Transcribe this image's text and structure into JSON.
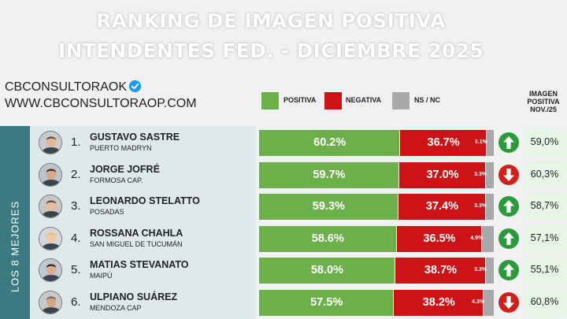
{
  "header": {
    "title_line1": "RANKING DE IMAGEN POSITIVA",
    "title_line2": "INTENDENTES FED. - DICIEMBRE 2025"
  },
  "brand": {
    "handle": "CBCONSULTORAOK",
    "website": "WWW.CBCONSULTORAOP.COM"
  },
  "legend": {
    "positive": "POSITIVA",
    "negative": "NEGATIVA",
    "nsnc": "NS / NC"
  },
  "prev_header": {
    "line1": "IMAGEN",
    "line2": "POSITIVA",
    "line3": "NOV./25"
  },
  "side_label": "LOS 8 MEJORES",
  "colors": {
    "positive": "#6db04b",
    "negative": "#cc1418",
    "nsnc": "#a9a9a9",
    "trend_up": "#2a9a3a",
    "trend_down": "#d0201c"
  },
  "chart_data": {
    "type": "bar",
    "stacked": true,
    "orientation": "horizontal",
    "title": "RANKING DE IMAGEN POSITIVA INTENDENTES FED. - DICIEMBRE 2025",
    "legend": [
      "POSITIVA",
      "NEGATIVA",
      "NS / NC"
    ],
    "xlim": [
      0,
      100
    ],
    "rows": [
      {
        "rank": "1.",
        "name": "GUSTAVO SASTRE",
        "city": "PUERTO MADRYN",
        "positive": 60.2,
        "negative": 36.7,
        "nsnc": 3.1,
        "positive_label": "60.2%",
        "negative_label": "36.7%",
        "nsnc_label": "3.1%",
        "trend": "up",
        "prev_label": "59,0%"
      },
      {
        "rank": "2.",
        "name": "JORGE JOFRÉ",
        "city": "FORMOSA CAP.",
        "positive": 59.7,
        "negative": 37.0,
        "nsnc": 3.3,
        "positive_label": "59.7%",
        "negative_label": "37.0%",
        "nsnc_label": "3.3%",
        "trend": "down",
        "prev_label": "60,3%"
      },
      {
        "rank": "3.",
        "name": "LEONARDO STELATTO",
        "city": "POSADAS",
        "positive": 59.3,
        "negative": 37.4,
        "nsnc": 3.3,
        "positive_label": "59.3%",
        "negative_label": "37.4%",
        "nsnc_label": "3.3%",
        "trend": "up",
        "prev_label": "58,7%"
      },
      {
        "rank": "4.",
        "name": "ROSSANA CHAHLA",
        "city": "SAN MIGUEL DE TUCUMÁN",
        "positive": 58.6,
        "negative": 36.5,
        "nsnc": 4.9,
        "positive_label": "58.6%",
        "negative_label": "36.5%",
        "nsnc_label": "4.9%",
        "trend": "up",
        "prev_label": "57,1%"
      },
      {
        "rank": "5.",
        "name": "MATIAS STEVANATO",
        "city": "MAIPÚ",
        "positive": 58.0,
        "negative": 38.7,
        "nsnc": 3.3,
        "positive_label": "58.0%",
        "negative_label": "38.7%",
        "nsnc_label": "3.3%",
        "trend": "up",
        "prev_label": "55,1%"
      },
      {
        "rank": "6.",
        "name": "ULPIANO SUÁREZ",
        "city": "MENDOZA CAP",
        "positive": 57.5,
        "negative": 38.2,
        "nsnc": 4.3,
        "positive_label": "57.5%",
        "negative_label": "38.2%",
        "nsnc_label": "4.3%",
        "trend": "down",
        "prev_label": "60,8%"
      }
    ]
  }
}
